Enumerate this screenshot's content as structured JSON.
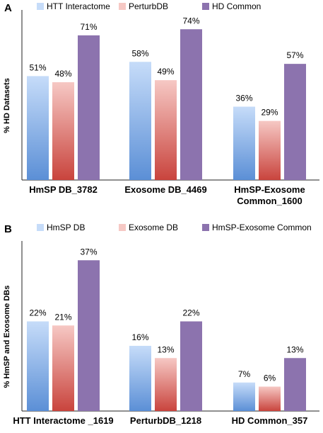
{
  "colors": {
    "blue_top": "#c6dcf9",
    "blue_bottom": "#5b8fd6",
    "red_top": "#f6c8c4",
    "red_bottom": "#c9443d",
    "purple": "#8c73ae",
    "axis": "#222222"
  },
  "chart_data": [
    {
      "panel_label": "A",
      "type": "bar",
      "ylabel": "% HD Datasets",
      "ylim": [
        0,
        80
      ],
      "legend_position": "top",
      "categories": [
        "HmSP DB_3782",
        "Exosome DB_4469",
        "HmSP-Exosome Common_1600"
      ],
      "category_lines": [
        [
          "HmSP DB_3782"
        ],
        [
          "Exosome DB_4469"
        ],
        [
          "HmSP-Exosome",
          "Common_1600"
        ]
      ],
      "series": [
        {
          "name": "HTT Interactome",
          "values": [
            51,
            58,
            36
          ],
          "labels": [
            "51%",
            "58%",
            "36%"
          ]
        },
        {
          "name": "PerturbDB",
          "values": [
            48,
            49,
            29
          ],
          "labels": [
            "48%",
            "49%",
            "29%"
          ]
        },
        {
          "name": "HD Common",
          "values": [
            71,
            74,
            57
          ],
          "labels": [
            "71%",
            "74%",
            "57%"
          ]
        }
      ]
    },
    {
      "panel_label": "B",
      "type": "bar",
      "ylabel": "% HmSP and Exosome DBs",
      "ylim": [
        0,
        40
      ],
      "legend_position": "top",
      "categories": [
        "HTT Interactome _1619",
        "PerturbDB_1218",
        "HD Common_357"
      ],
      "category_lines": [
        [
          "HTT Interactome _1619"
        ],
        [
          "PerturbDB_1218"
        ],
        [
          "HD Common_357"
        ]
      ],
      "series": [
        {
          "name": "HmSP DB",
          "values": [
            22,
            16,
            7
          ],
          "labels": [
            "22%",
            "16%",
            "7%"
          ]
        },
        {
          "name": "Exosome DB",
          "values": [
            21,
            13,
            6
          ],
          "labels": [
            "21%",
            "13%",
            "6%"
          ]
        },
        {
          "name": "HmSP-Exosome Common",
          "values": [
            37,
            22,
            13
          ],
          "labels": [
            "37%",
            "22%",
            "13%"
          ]
        }
      ]
    }
  ]
}
